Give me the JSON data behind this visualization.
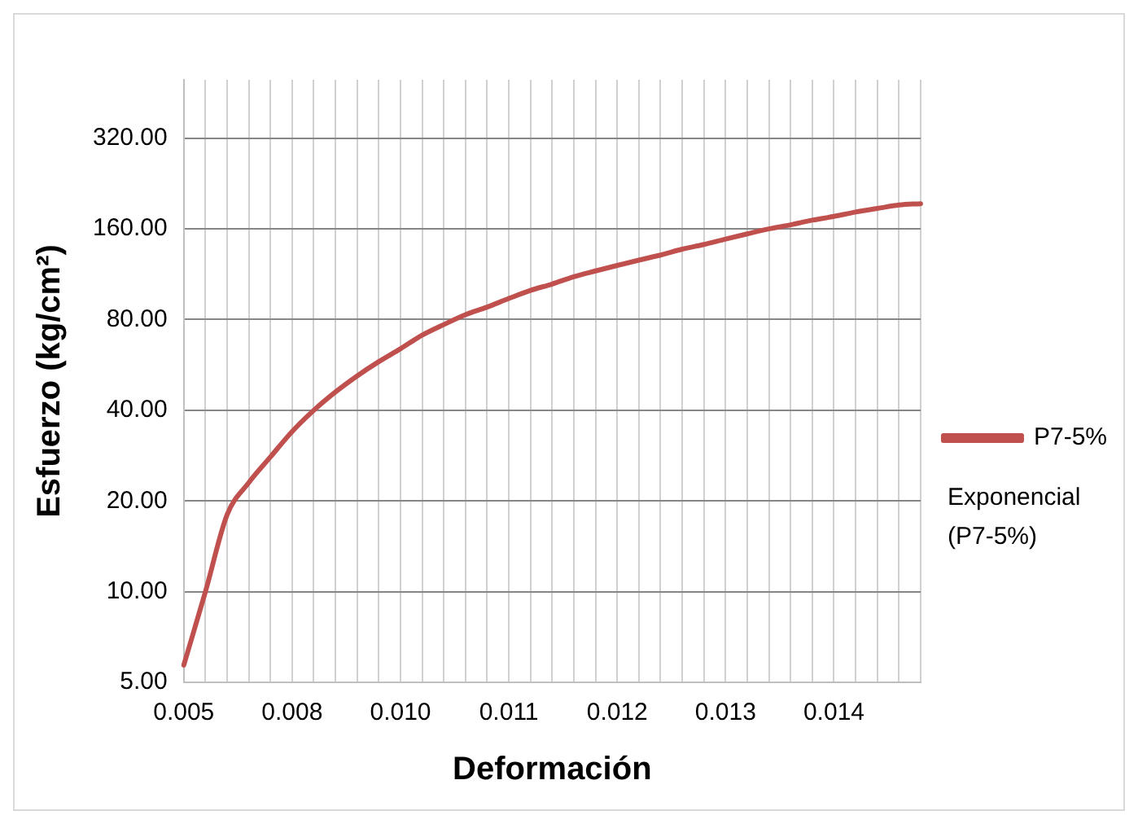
{
  "chart_data": {
    "type": "line",
    "xlabel": "Deformación",
    "ylabel": "Esfuerzo (kg/cm²)",
    "categories": [
      "0.005",
      null,
      null,
      null,
      null,
      "0.008",
      null,
      null,
      null,
      null,
      "0.010",
      null,
      null,
      null,
      null,
      "0.011",
      null,
      null,
      null,
      null,
      "0.012",
      null,
      null,
      null,
      null,
      "0.013",
      null,
      null,
      null,
      null,
      "0.014",
      null,
      null,
      null,
      null
    ],
    "series": [
      {
        "name": "P7-5%",
        "color": "#c0504d",
        "values": [
          5.7,
          10,
          18,
          23,
          28,
          34,
          40,
          46,
          52,
          58,
          64,
          71,
          77,
          83,
          88,
          94,
          100,
          105,
          111,
          116,
          121,
          126,
          131,
          137,
          142,
          148,
          154,
          160,
          165,
          171,
          176,
          182,
          187,
          192,
          194
        ]
      }
    ],
    "log": "y",
    "ylim": [
      5,
      500
    ],
    "yticks": [
      {
        "value": 5,
        "label": "5.00"
      },
      {
        "value": 10,
        "label": "10.00"
      },
      {
        "value": 20,
        "label": "20.00"
      },
      {
        "value": 40,
        "label": "40.00"
      },
      {
        "value": 80,
        "label": "80.00"
      },
      {
        "value": 160,
        "label": "160.00"
      },
      {
        "value": 320,
        "label": "320.00"
      }
    ],
    "grid": true,
    "legend": "right",
    "marker": "none",
    "line_style": "solid",
    "annotations": [
      "Exponencial (P7-5%)"
    ]
  }
}
